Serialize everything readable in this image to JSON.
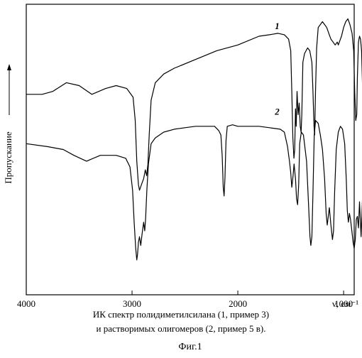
{
  "figure": {
    "caption_line1": "ИК спектр полидиметилсилана (1, пример 3)",
    "caption_line2": "и растворимых олигомеров (2, пример 5 в).",
    "figure_label": "Фиг.1"
  },
  "chart_data": {
    "type": "line",
    "title": "",
    "xlabel": "ν, см⁻¹",
    "ylabel": "Пропускание",
    "x_reversed": true,
    "xlim": [
      4000,
      900
    ],
    "xticks": [
      {
        "value": 4000,
        "label": "4000"
      },
      {
        "value": 3000,
        "label": "3000"
      },
      {
        "value": 2000,
        "label": "2000"
      },
      {
        "value": 1000,
        "label": "1000"
      }
    ],
    "ylim": [
      0,
      1
    ],
    "grid": false,
    "series": [
      {
        "name": "1",
        "color": "#000000",
        "label_at": {
          "x": 1650,
          "y": 0.915
        },
        "points": [
          [
            4000,
            0.69
          ],
          [
            3850,
            0.69
          ],
          [
            3750,
            0.7
          ],
          [
            3620,
            0.73
          ],
          [
            3500,
            0.72
          ],
          [
            3380,
            0.69
          ],
          [
            3250,
            0.71
          ],
          [
            3150,
            0.72
          ],
          [
            3050,
            0.71
          ],
          [
            2990,
            0.68
          ],
          [
            2970,
            0.6
          ],
          [
            2955,
            0.46
          ],
          [
            2940,
            0.38
          ],
          [
            2930,
            0.36
          ],
          [
            2910,
            0.38
          ],
          [
            2890,
            0.4
          ],
          [
            2875,
            0.43
          ],
          [
            2862,
            0.41
          ],
          [
            2850,
            0.45
          ],
          [
            2838,
            0.55
          ],
          [
            2820,
            0.67
          ],
          [
            2780,
            0.73
          ],
          [
            2700,
            0.76
          ],
          [
            2600,
            0.78
          ],
          [
            2400,
            0.81
          ],
          [
            2200,
            0.84
          ],
          [
            2000,
            0.86
          ],
          [
            1800,
            0.89
          ],
          [
            1700,
            0.895
          ],
          [
            1620,
            0.9
          ],
          [
            1560,
            0.895
          ],
          [
            1520,
            0.88
          ],
          [
            1500,
            0.84
          ],
          [
            1490,
            0.7
          ],
          [
            1480,
            0.54
          ],
          [
            1470,
            0.47
          ],
          [
            1462,
            0.5
          ],
          [
            1455,
            0.64
          ],
          [
            1448,
            0.58
          ],
          [
            1440,
            0.7
          ],
          [
            1430,
            0.62
          ],
          [
            1420,
            0.66
          ],
          [
            1410,
            0.58
          ],
          [
            1402,
            0.56
          ],
          [
            1395,
            0.62
          ],
          [
            1385,
            0.8
          ],
          [
            1370,
            0.83
          ],
          [
            1340,
            0.85
          ],
          [
            1320,
            0.84
          ],
          [
            1300,
            0.8
          ],
          [
            1290,
            0.7
          ],
          [
            1280,
            0.58
          ],
          [
            1274,
            0.55
          ],
          [
            1266,
            0.7
          ],
          [
            1255,
            0.85
          ],
          [
            1240,
            0.92
          ],
          [
            1200,
            0.94
          ],
          [
            1160,
            0.92
          ],
          [
            1140,
            0.9
          ],
          [
            1120,
            0.88
          ],
          [
            1100,
            0.87
          ],
          [
            1080,
            0.86
          ],
          [
            1060,
            0.87
          ],
          [
            1050,
            0.86
          ],
          [
            1040,
            0.87
          ],
          [
            1020,
            0.89
          ],
          [
            1000,
            0.92
          ],
          [
            980,
            0.94
          ],
          [
            960,
            0.95
          ],
          [
            940,
            0.93
          ],
          [
            920,
            0.9
          ],
          [
            905,
            0.84
          ],
          [
            895,
            0.7
          ],
          [
            885,
            0.6
          ],
          [
            876,
            0.62
          ],
          [
            870,
            0.75
          ],
          [
            860,
            0.87
          ],
          [
            850,
            0.89
          ],
          [
            840,
            0.88
          ],
          [
            830,
            0.84
          ],
          [
            820,
            0.7
          ],
          [
            810,
            0.55
          ],
          [
            800,
            0.48
          ],
          [
            792,
            0.52
          ],
          [
            785,
            0.72
          ],
          [
            775,
            0.88
          ],
          [
            768,
            0.93
          ],
          [
            760,
            0.96
          ],
          [
            752,
            0.92
          ],
          [
            745,
            0.78
          ],
          [
            738,
            0.66
          ],
          [
            730,
            0.62
          ],
          [
            724,
            0.7
          ],
          [
            715,
            0.92
          ],
          [
            705,
            0.965
          ],
          [
            680,
            0.965
          ],
          [
            660,
            0.965
          ]
        ]
      },
      {
        "name": "2",
        "color": "#000000",
        "label_at": {
          "x": 1650,
          "y": 0.62
        },
        "points": [
          [
            4000,
            0.52
          ],
          [
            3800,
            0.51
          ],
          [
            3650,
            0.5
          ],
          [
            3550,
            0.48
          ],
          [
            3430,
            0.46
          ],
          [
            3300,
            0.48
          ],
          [
            3150,
            0.48
          ],
          [
            3060,
            0.47
          ],
          [
            3020,
            0.44
          ],
          [
            2995,
            0.36
          ],
          [
            2980,
            0.25
          ],
          [
            2965,
            0.16
          ],
          [
            2955,
            0.12
          ],
          [
            2948,
            0.14
          ],
          [
            2940,
            0.18
          ],
          [
            2930,
            0.2
          ],
          [
            2918,
            0.17
          ],
          [
            2905,
            0.21
          ],
          [
            2890,
            0.25
          ],
          [
            2880,
            0.22
          ],
          [
            2872,
            0.26
          ],
          [
            2860,
            0.36
          ],
          [
            2845,
            0.45
          ],
          [
            2820,
            0.52
          ],
          [
            2780,
            0.54
          ],
          [
            2700,
            0.56
          ],
          [
            2600,
            0.57
          ],
          [
            2500,
            0.575
          ],
          [
            2400,
            0.58
          ],
          [
            2300,
            0.58
          ],
          [
            2220,
            0.58
          ],
          [
            2180,
            0.565
          ],
          [
            2160,
            0.55
          ],
          [
            2148,
            0.48
          ],
          [
            2138,
            0.37
          ],
          [
            2130,
            0.34
          ],
          [
            2122,
            0.4
          ],
          [
            2112,
            0.53
          ],
          [
            2100,
            0.58
          ],
          [
            2050,
            0.585
          ],
          [
            2000,
            0.58
          ],
          [
            1900,
            0.58
          ],
          [
            1800,
            0.58
          ],
          [
            1700,
            0.575
          ],
          [
            1600,
            0.57
          ],
          [
            1560,
            0.56
          ],
          [
            1530,
            0.51
          ],
          [
            1512,
            0.46
          ],
          [
            1500,
            0.42
          ],
          [
            1490,
            0.37
          ],
          [
            1478,
            0.41
          ],
          [
            1468,
            0.45
          ],
          [
            1455,
            0.4
          ],
          [
            1445,
            0.33
          ],
          [
            1435,
            0.31
          ],
          [
            1425,
            0.38
          ],
          [
            1415,
            0.52
          ],
          [
            1400,
            0.56
          ],
          [
            1380,
            0.55
          ],
          [
            1350,
            0.46
          ],
          [
            1330,
            0.3
          ],
          [
            1318,
            0.2
          ],
          [
            1310,
            0.17
          ],
          [
            1300,
            0.2
          ],
          [
            1290,
            0.35
          ],
          [
            1278,
            0.55
          ],
          [
            1265,
            0.6
          ],
          [
            1240,
            0.59
          ],
          [
            1220,
            0.55
          ],
          [
            1200,
            0.5
          ],
          [
            1180,
            0.4
          ],
          [
            1165,
            0.28
          ],
          [
            1155,
            0.24
          ],
          [
            1145,
            0.27
          ],
          [
            1135,
            0.3
          ],
          [
            1120,
            0.24
          ],
          [
            1105,
            0.19
          ],
          [
            1095,
            0.22
          ],
          [
            1085,
            0.35
          ],
          [
            1070,
            0.5
          ],
          [
            1050,
            0.56
          ],
          [
            1030,
            0.58
          ],
          [
            1010,
            0.57
          ],
          [
            990,
            0.52
          ],
          [
            975,
            0.4
          ],
          [
            965,
            0.29
          ],
          [
            955,
            0.25
          ],
          [
            945,
            0.28
          ],
          [
            935,
            0.26
          ],
          [
            922,
            0.22
          ],
          [
            910,
            0.18
          ],
          [
            900,
            0.16
          ],
          [
            890,
            0.19
          ],
          [
            880,
            0.26
          ],
          [
            870,
            0.27
          ],
          [
            860,
            0.23
          ],
          [
            850,
            0.32
          ],
          [
            842,
            0.26
          ],
          [
            835,
            0.2
          ],
          [
            825,
            0.3
          ],
          [
            815,
            0.4
          ],
          [
            808,
            0.35
          ],
          [
            800,
            0.28
          ],
          [
            790,
            0.24
          ],
          [
            780,
            0.3
          ],
          [
            772,
            0.36
          ],
          [
            765,
            0.34
          ],
          [
            755,
            0.4
          ],
          [
            745,
            0.5
          ],
          [
            735,
            0.58
          ],
          [
            725,
            0.62
          ],
          [
            700,
            0.625
          ],
          [
            660,
            0.625
          ]
        ]
      }
    ]
  }
}
